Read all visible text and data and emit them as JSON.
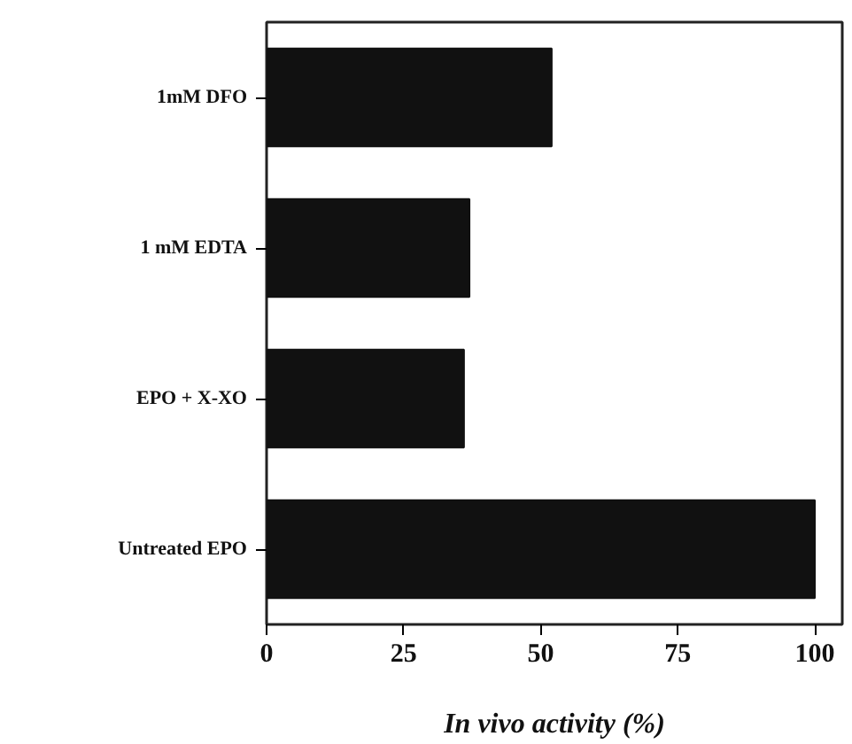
{
  "chart_data": {
    "type": "bar",
    "orientation": "horizontal",
    "xlabel": "In vivo activity (%)",
    "categories": [
      "1mM DFO",
      "1 mM EDTA",
      "EPO + X-XO",
      "Untreated EPO"
    ],
    "values": [
      52,
      37,
      36,
      100
    ],
    "color": "#111111",
    "xlim": [
      0,
      105
    ],
    "xticks": [
      0,
      25,
      50,
      75,
      100
    ],
    "grid": false
  }
}
